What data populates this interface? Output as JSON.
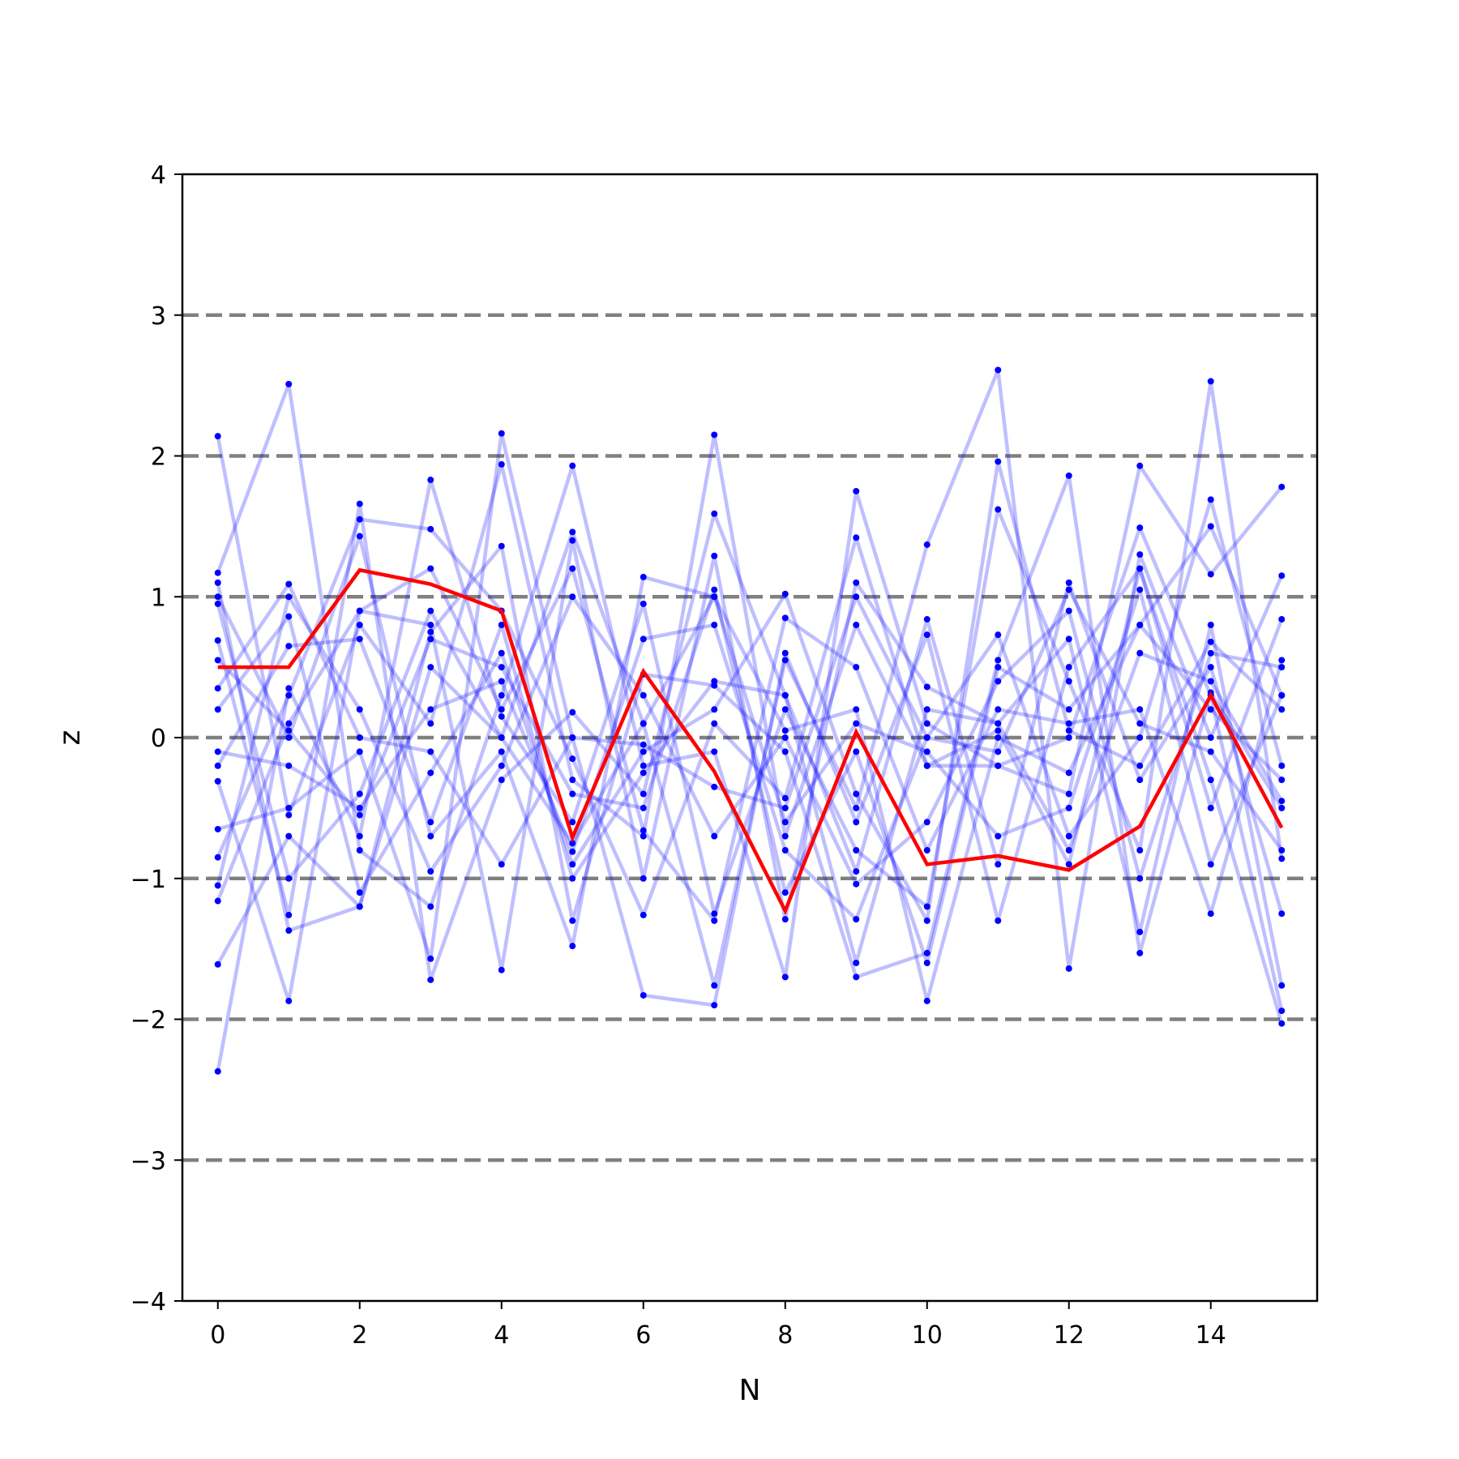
{
  "chart_data": {
    "type": "line",
    "xlabel": "N",
    "ylabel": "z",
    "xlim": [
      -0.5,
      15.5
    ],
    "ylim": [
      -4,
      4
    ],
    "xticks": [
      0,
      2,
      4,
      6,
      8,
      10,
      12,
      14
    ],
    "yticks": [
      -4,
      -3,
      -2,
      -1,
      0,
      1,
      2,
      3,
      4
    ],
    "ytick_labels": [
      "−4",
      "−3",
      "−2",
      "−1",
      "0",
      "1",
      "2",
      "3",
      "4"
    ],
    "reference_lines": [
      -3,
      -2,
      -1,
      0,
      1,
      2,
      3
    ],
    "colors": {
      "samples": "#0000ff",
      "highlight": "#ff0000",
      "reference": "#808080"
    },
    "x": [
      0,
      1,
      2,
      3,
      4,
      5,
      6,
      7,
      8,
      9,
      10,
      11,
      12,
      13,
      14,
      15
    ],
    "highlight_series": {
      "values": [
        0.5,
        0.5,
        1.19,
        1.09,
        0.9,
        -0.71,
        0.47,
        -0.24,
        -1.23,
        0.04,
        -0.9,
        -0.84,
        -0.94,
        -0.63,
        0.3,
        -0.64
      ]
    },
    "series": [
      {
        "values": [
          2.14,
          -0.55,
          0.8,
          0.1,
          1.94,
          -0.3,
          -0.7,
          2.15,
          -0.7,
          0.8,
          -0.2,
          0.05,
          -0.9,
          1.2,
          -0.3,
          -2.03
        ]
      },
      {
        "values": [
          -2.37,
          0.35,
          -0.7,
          1.83,
          0.15,
          -0.6,
          0.95,
          -1.25,
          0.2,
          -0.8,
          -1.2,
          1.62,
          0.4,
          -0.8,
          2.53,
          -0.86
        ]
      },
      {
        "values": [
          1.17,
          2.51,
          -0.8,
          -1.2,
          0.3,
          1.93,
          -0.2,
          -0.1,
          -1.7,
          1.75,
          0.1,
          -0.2,
          -0.4,
          1.93,
          1.16,
          1.78
        ]
      },
      {
        "values": [
          -1.61,
          -0.7,
          -1.2,
          0.5,
          0.0,
          1.46,
          0.1,
          -1.76,
          0.55,
          -0.5,
          1.37,
          2.61,
          -1.64,
          1.3,
          0.0,
          1.15
        ]
      },
      {
        "values": [
          1.1,
          -1.37,
          -1.2,
          0.75,
          1.36,
          -1.3,
          0.45,
          0.37,
          -0.1,
          -1.7,
          -1.53,
          0.55,
          1.86,
          -1.53,
          0.32,
          -0.5
        ]
      },
      {
        "values": [
          0.69,
          -1.26,
          1.66,
          -1.72,
          -0.3,
          0.18,
          -0.4,
          1.59,
          0.3,
          -0.95,
          0.84,
          -0.9,
          1.1,
          -0.3,
          0.5,
          -1.25
        ]
      },
      {
        "values": [
          -0.85,
          0.3,
          1.55,
          1.48,
          0.9,
          -0.15,
          -1.26,
          0.1,
          -0.43,
          1.42,
          -0.2,
          -0.2,
          0.0,
          1.49,
          0.3,
          -1.94
        ]
      },
      {
        "values": [
          -0.31,
          -1.87,
          0.9,
          0.8,
          -1.65,
          1.4,
          -1.0,
          1.29,
          -1.29,
          1.1,
          0.36,
          0.1,
          0.7,
          -1.38,
          0.8,
          -1.76
        ]
      },
      {
        "values": [
          1.0,
          0.0,
          1.43,
          -0.7,
          -0.1,
          -1.48,
          1.14,
          1.0,
          0.05,
          0.2,
          -1.87,
          0.0,
          -0.25,
          0.8,
          1.5,
          0.3
        ]
      },
      {
        "values": [
          0.35,
          1.09,
          0.0,
          -0.1,
          -0.9,
          0.0,
          -1.83,
          -1.9,
          0.6,
          -0.6,
          0.73,
          -1.3,
          0.5,
          1.2,
          -0.5,
          0.84
        ]
      },
      {
        "values": [
          -0.1,
          -0.2,
          -0.5,
          0.2,
          0.4,
          -0.81,
          0.7,
          0.8,
          -0.8,
          -1.29,
          0.0,
          0.73,
          -0.7,
          0.0,
          1.69,
          -0.2
        ]
      },
      {
        "values": [
          -1.16,
          0.1,
          0.9,
          1.2,
          0.2,
          1.2,
          -0.66,
          -1.3,
          0.85,
          0.5,
          -0.8,
          0.2,
          0.1,
          0.2,
          -1.25,
          0.55
        ]
      },
      {
        "values": [
          0.2,
          0.86,
          -1.1,
          -0.25,
          0.6,
          -0.9,
          -0.1,
          0.2,
          1.02,
          -0.4,
          -1.3,
          1.96,
          0.05,
          -0.2,
          0.68,
          0.2
        ]
      },
      {
        "values": [
          -0.65,
          -0.5,
          -0.1,
          -1.57,
          2.16,
          0.0,
          -0.05,
          -0.35,
          -0.5,
          1.0,
          0.0,
          -0.1,
          1.05,
          0.1,
          -0.1,
          -0.8
        ]
      },
      {
        "values": [
          0.55,
          0.05,
          -0.55,
          0.7,
          0.5,
          -0.4,
          -0.5,
          1.05,
          -1.1,
          -0.1,
          -1.6,
          0.5,
          0.2,
          0.8,
          0.2,
          -0.3
        ]
      },
      {
        "values": [
          -1.05,
          1.0,
          0.2,
          -0.95,
          -0.2,
          1.0,
          0.3,
          -0.7,
          0.0,
          -1.04,
          -0.6,
          0.4,
          0.9,
          -1.0,
          0.6,
          0.5
        ]
      },
      {
        "values": [
          0.95,
          -1.0,
          -0.4,
          0.9,
          0.0,
          -0.75,
          0.1,
          1.0,
          -0.6,
          0.1,
          -0.1,
          -0.7,
          -0.5,
          1.05,
          -0.9,
          0.3
        ]
      },
      {
        "values": [
          -0.2,
          0.65,
          0.7,
          -0.6,
          0.8,
          -1.0,
          -0.25,
          0.4,
          0.3,
          -1.6,
          0.2,
          0.1,
          -0.8,
          0.6,
          0.4,
          -0.45
        ]
      }
    ]
  }
}
